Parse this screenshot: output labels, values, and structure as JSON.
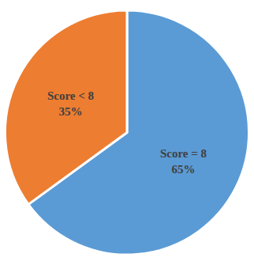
{
  "chart_data": {
    "type": "pie",
    "categories": [
      "Score = 8",
      "Score < 8"
    ],
    "values": [
      65,
      35
    ],
    "value_labels": [
      "65%",
      "35%"
    ],
    "colors": [
      "#5b9bd5",
      "#ed7d31"
    ],
    "data_labels": true
  }
}
